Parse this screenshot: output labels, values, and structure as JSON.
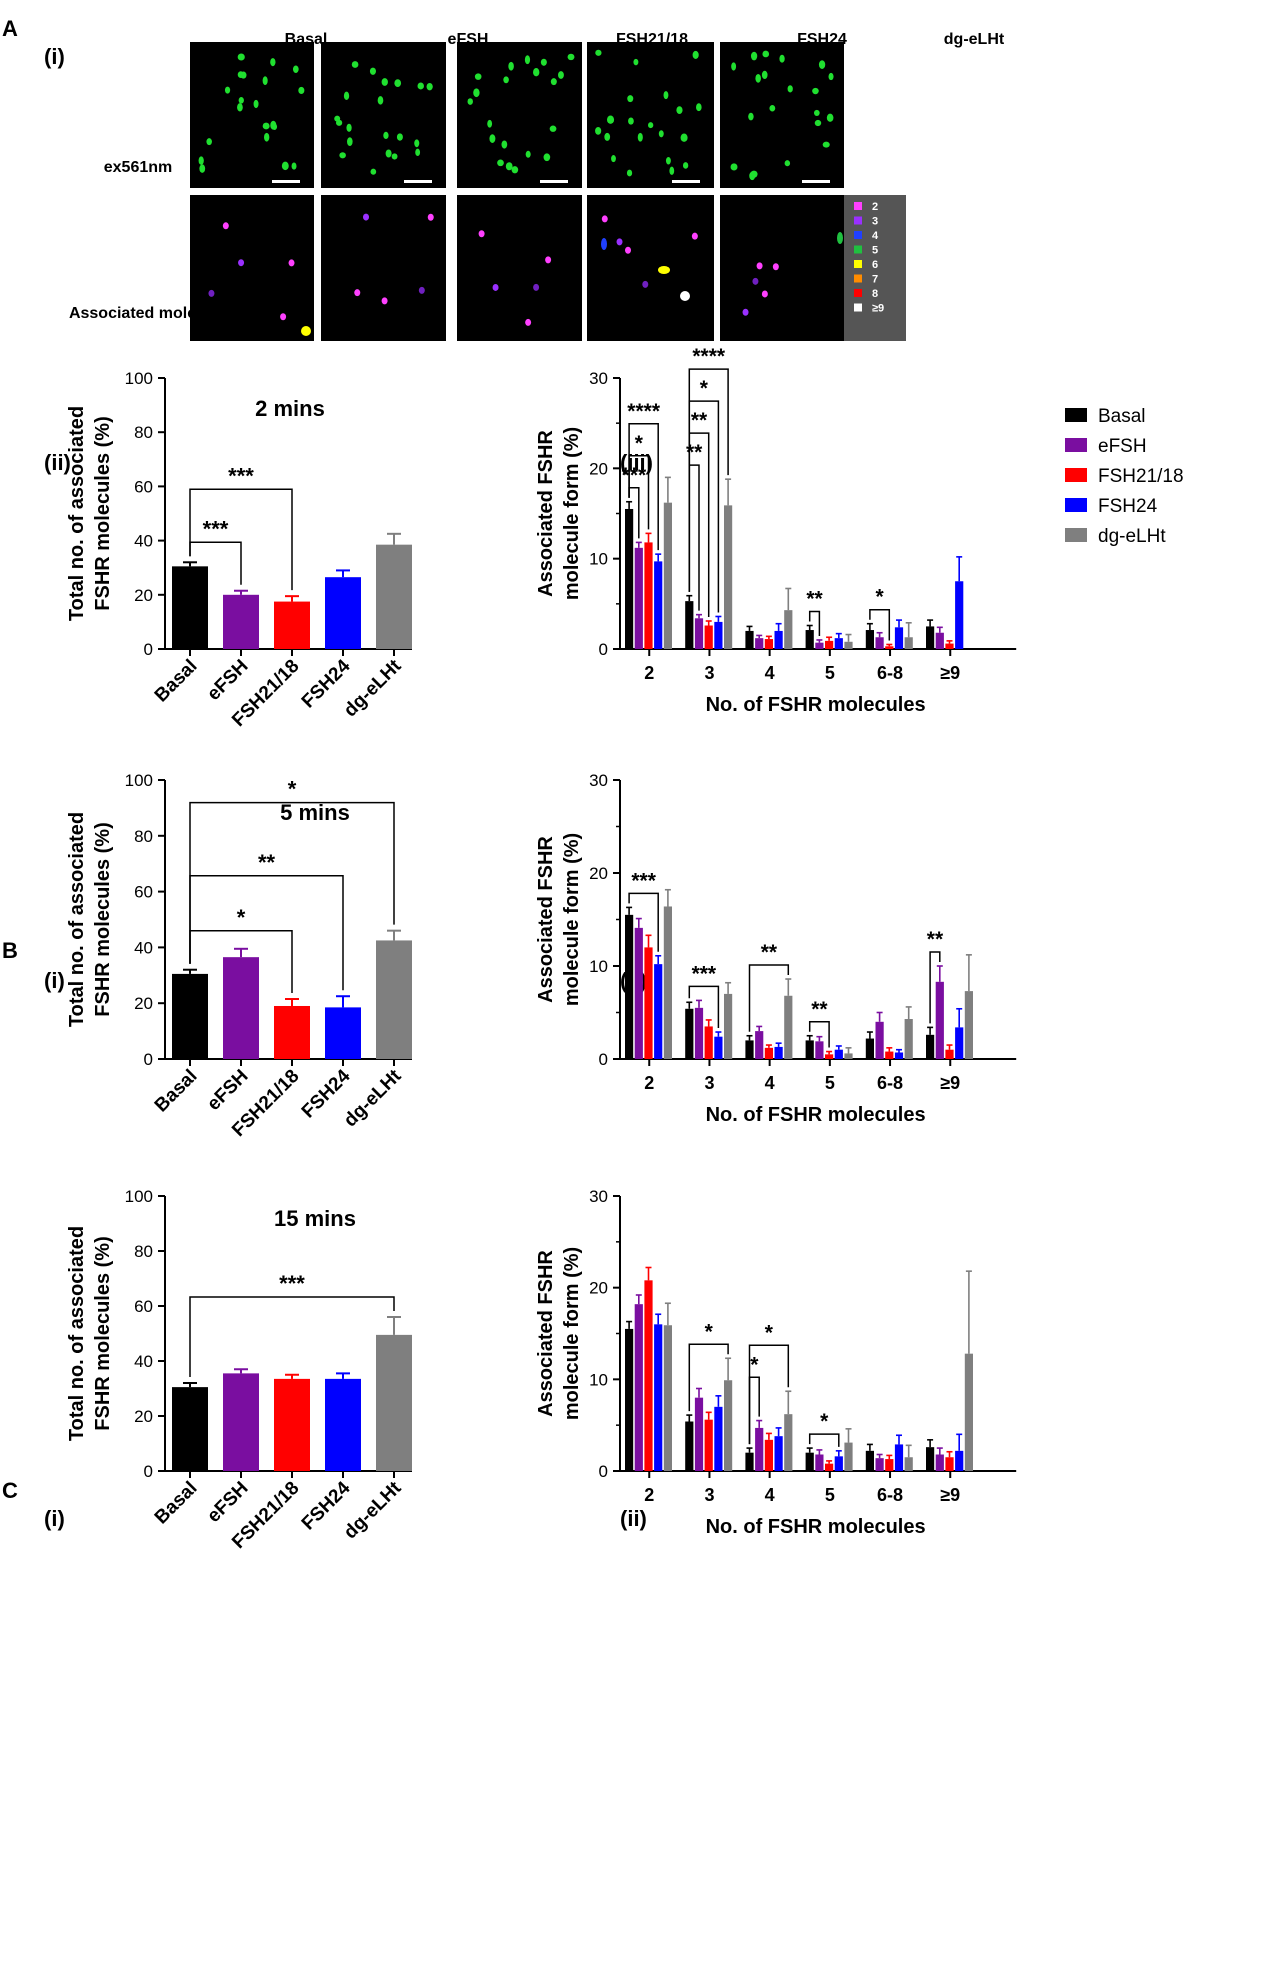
{
  "colors": {
    "Basal": "#000000",
    "eFSH": "#7a0ea0",
    "FSH21/18": "#ff0000",
    "FSH24": "#0000ff",
    "dg-eLHt": "#7f7f7f"
  },
  "panel_labels": {
    "A": "A",
    "A_i": "(i)",
    "A_ii": "(ii)",
    "A_iii": "(iii)",
    "B": "B",
    "B_i": "(i)",
    "B_ii": "(ii)",
    "C": "C",
    "C_i": "(i)",
    "C_ii": "(ii)"
  },
  "microscopy": {
    "column_labels": [
      "Basal",
      "eFSH",
      "FSH21/18",
      "FSH24",
      "dg-eLHt"
    ],
    "row_labels": [
      "ex561nm",
      "Associated molecules"
    ],
    "legend": {
      "items": [
        "2",
        "3",
        "4",
        "5",
        "6",
        "7",
        "8",
        "≥9"
      ],
      "colors": [
        "#ff40ff",
        "#9a30ff",
        "#2040ff",
        "#20c040",
        "#ffff00",
        "#ff8c00",
        "#ff0000",
        "#ffffff"
      ]
    }
  },
  "chart_data": [
    {
      "id": "A_ii",
      "type": "bar",
      "title": "2 mins",
      "ylabel_lines": [
        "Total no. of associated",
        "FSHR molecules (%)"
      ],
      "xlabel": "",
      "categories": [
        "Basal",
        "eFSH",
        "FSH21/18",
        "FSH24",
        "dg-eLHt"
      ],
      "values": [
        30.5,
        20,
        17.5,
        26.5,
        38.5
      ],
      "errors": [
        1.5,
        1.5,
        2,
        2.5,
        4
      ],
      "ylim": [
        0,
        100
      ],
      "yticks": [
        "0",
        "20",
        "40",
        "60",
        "80",
        "100"
      ],
      "significance": [
        {
          "from": 0,
          "to": 1,
          "label": "***"
        },
        {
          "from": 0,
          "to": 2,
          "label": "***"
        }
      ]
    },
    {
      "id": "A_iii",
      "type": "bar",
      "title": "",
      "ylabel_lines": [
        "Associated FSHR",
        "molecule form (%)"
      ],
      "xlabel": "No. of FSHR molecules",
      "categories": [
        "2",
        "3",
        "4",
        "5",
        "6-8",
        "≥9"
      ],
      "legend": [
        "Basal",
        "eFSH",
        "FSH21/18",
        "FSH24",
        "dg-eLHt"
      ],
      "series": [
        {
          "name": "Basal",
          "values": [
            15.5,
            5.3,
            2.0,
            2.1,
            2.1,
            2.5
          ],
          "errors": [
            0.8,
            0.6,
            0.5,
            0.5,
            0.7,
            0.7
          ]
        },
        {
          "name": "eFSH",
          "values": [
            11.2,
            3.4,
            1.2,
            0.7,
            1.3,
            1.8
          ],
          "errors": [
            0.6,
            0.4,
            0.3,
            0.3,
            0.5,
            0.6
          ]
        },
        {
          "name": "FSH21/18",
          "values": [
            11.8,
            2.6,
            1.1,
            0.9,
            0.3,
            0.6
          ],
          "errors": [
            1.0,
            0.5,
            0.3,
            0.4,
            0.2,
            0.3
          ]
        },
        {
          "name": "FSH24",
          "values": [
            9.7,
            3.0,
            2.0,
            1.2,
            2.4,
            7.5
          ],
          "errors": [
            0.8,
            0.6,
            0.8,
            0.5,
            0.8,
            2.7
          ]
        },
        {
          "name": "dg-eLHt",
          "values": [
            16.2,
            15.9,
            4.3,
            0.8,
            1.3,
            0.0
          ],
          "errors": [
            2.8,
            2.9,
            2.4,
            0.8,
            1.6,
            0.0
          ]
        }
      ],
      "ylim": [
        0,
        30
      ],
      "yticks": [
        "0",
        "10",
        "20",
        "30"
      ],
      "significance": [
        {
          "group": 0,
          "from": 0,
          "to": 1,
          "label": "***"
        },
        {
          "group": 0,
          "from": 0,
          "to": 2,
          "label": "*"
        },
        {
          "group": 0,
          "from": 0,
          "to": 3,
          "label": "****"
        },
        {
          "group": 1,
          "from": 0,
          "to": 1,
          "label": "**"
        },
        {
          "group": 1,
          "from": 0,
          "to": 2,
          "label": "**"
        },
        {
          "group": 1,
          "from": 0,
          "to": 3,
          "label": "*"
        },
        {
          "group": 1,
          "from": 0,
          "to": 4,
          "label": "****"
        },
        {
          "group": 3,
          "from": 0,
          "to": 1,
          "label": "**"
        },
        {
          "group": 4,
          "from": 0,
          "to": 2,
          "label": "*"
        }
      ]
    },
    {
      "id": "B_i",
      "type": "bar",
      "title": "5 mins",
      "ylabel_lines": [
        "Total no. of associated",
        "FSHR molecules (%)"
      ],
      "xlabel": "",
      "categories": [
        "Basal",
        "eFSH",
        "FSH21/18",
        "FSH24",
        "dg-eLHt"
      ],
      "values": [
        30.5,
        36.5,
        19,
        18.5,
        42.5
      ],
      "errors": [
        1.5,
        3,
        2.5,
        4,
        3.5
      ],
      "ylim": [
        0,
        100
      ],
      "yticks": [
        "0",
        "20",
        "40",
        "60",
        "80",
        "100"
      ],
      "significance": [
        {
          "from": 0,
          "to": 2,
          "label": "*"
        },
        {
          "from": 0,
          "to": 3,
          "label": "**"
        },
        {
          "from": 0,
          "to": 4,
          "label": "*"
        }
      ]
    },
    {
      "id": "B_ii",
      "type": "bar",
      "title": "",
      "ylabel_lines": [
        "Associated FSHR",
        "molecule form (%)"
      ],
      "xlabel": "No. of FSHR molecules",
      "categories": [
        "2",
        "3",
        "4",
        "5",
        "6-8",
        "≥9"
      ],
      "series": [
        {
          "name": "Basal",
          "values": [
            15.5,
            5.4,
            2.0,
            2.0,
            2.2,
            2.6
          ],
          "errors": [
            0.8,
            0.7,
            0.5,
            0.5,
            0.7,
            0.8
          ]
        },
        {
          "name": "eFSH",
          "values": [
            14.1,
            5.5,
            3.0,
            1.9,
            4.0,
            8.3
          ],
          "errors": [
            1.0,
            0.8,
            0.5,
            0.5,
            1.0,
            1.7
          ]
        },
        {
          "name": "FSH21/18",
          "values": [
            12.0,
            3.5,
            1.2,
            0.5,
            0.8,
            1.0
          ],
          "errors": [
            1.3,
            0.7,
            0.3,
            0.3,
            0.4,
            0.5
          ]
        },
        {
          "name": "FSH24",
          "values": [
            10.2,
            2.4,
            1.3,
            1.0,
            0.7,
            3.4
          ],
          "errors": [
            0.9,
            0.5,
            0.4,
            0.4,
            0.3,
            2.0
          ]
        },
        {
          "name": "dg-eLHt",
          "values": [
            16.4,
            7.0,
            6.8,
            0.6,
            4.3,
            7.3
          ],
          "errors": [
            1.8,
            1.2,
            1.8,
            0.6,
            1.3,
            3.9
          ]
        }
      ],
      "ylim": [
        0,
        30
      ],
      "yticks": [
        "0",
        "10",
        "20",
        "30"
      ],
      "significance": [
        {
          "group": 0,
          "from": 0,
          "to": 3,
          "label": "***"
        },
        {
          "group": 1,
          "from": 0,
          "to": 3,
          "label": "***"
        },
        {
          "group": 2,
          "from": 0,
          "to": 4,
          "label": "**"
        },
        {
          "group": 3,
          "from": 0,
          "to": 2,
          "label": "**"
        },
        {
          "group": 5,
          "from": 0,
          "to": 1,
          "label": "**"
        }
      ]
    },
    {
      "id": "C_i",
      "type": "bar",
      "title": "15 mins",
      "ylabel_lines": [
        "Total no. of associated",
        "FSHR molecules (%)"
      ],
      "xlabel": "",
      "categories": [
        "Basal",
        "eFSH",
        "FSH21/18",
        "FSH24",
        "dg-eLHt"
      ],
      "values": [
        30.5,
        35.5,
        33.5,
        33.5,
        49.5
      ],
      "errors": [
        1.5,
        1.5,
        1.5,
        2,
        6.5
      ],
      "ylim": [
        0,
        100
      ],
      "yticks": [
        "0",
        "20",
        "40",
        "60",
        "80",
        "100"
      ],
      "significance": [
        {
          "from": 0,
          "to": 4,
          "label": "***"
        }
      ]
    },
    {
      "id": "C_ii",
      "type": "bar",
      "title": "",
      "ylabel_lines": [
        "Associated FSHR",
        "molecule form (%)"
      ],
      "xlabel": "No. of FSHR molecules",
      "categories": [
        "2",
        "3",
        "4",
        "5",
        "6-8",
        "≥9"
      ],
      "series": [
        {
          "name": "Basal",
          "values": [
            15.5,
            5.4,
            2.0,
            2.0,
            2.2,
            2.6
          ],
          "errors": [
            0.8,
            0.7,
            0.5,
            0.5,
            0.7,
            0.8
          ]
        },
        {
          "name": "eFSH",
          "values": [
            18.2,
            8.0,
            4.7,
            1.8,
            1.4,
            1.8
          ],
          "errors": [
            1.0,
            1.0,
            0.8,
            0.5,
            0.4,
            0.7
          ]
        },
        {
          "name": "FSH21/18",
          "values": [
            20.8,
            5.6,
            3.4,
            0.8,
            1.3,
            1.5
          ],
          "errors": [
            1.4,
            0.8,
            0.7,
            0.3,
            0.4,
            0.6
          ]
        },
        {
          "name": "FSH24",
          "values": [
            16.0,
            7.0,
            3.8,
            1.6,
            2.9,
            2.2
          ],
          "errors": [
            1.1,
            1.2,
            0.9,
            0.6,
            1.0,
            1.8
          ]
        },
        {
          "name": "dg-eLHt",
          "values": [
            15.9,
            9.9,
            6.2,
            3.1,
            1.5,
            12.8
          ],
          "errors": [
            2.4,
            2.4,
            2.5,
            1.5,
            1.3,
            9.0
          ]
        }
      ],
      "ylim": [
        0,
        30
      ],
      "yticks": [
        "0",
        "10",
        "20",
        "30"
      ],
      "significance": [
        {
          "group": 1,
          "from": 0,
          "to": 4,
          "label": "*"
        },
        {
          "group": 2,
          "from": 0,
          "to": 1,
          "label": "*"
        },
        {
          "group": 2,
          "from": 0,
          "to": 4,
          "label": "*"
        },
        {
          "group": 3,
          "from": 0,
          "to": 3,
          "label": "*"
        }
      ]
    }
  ]
}
